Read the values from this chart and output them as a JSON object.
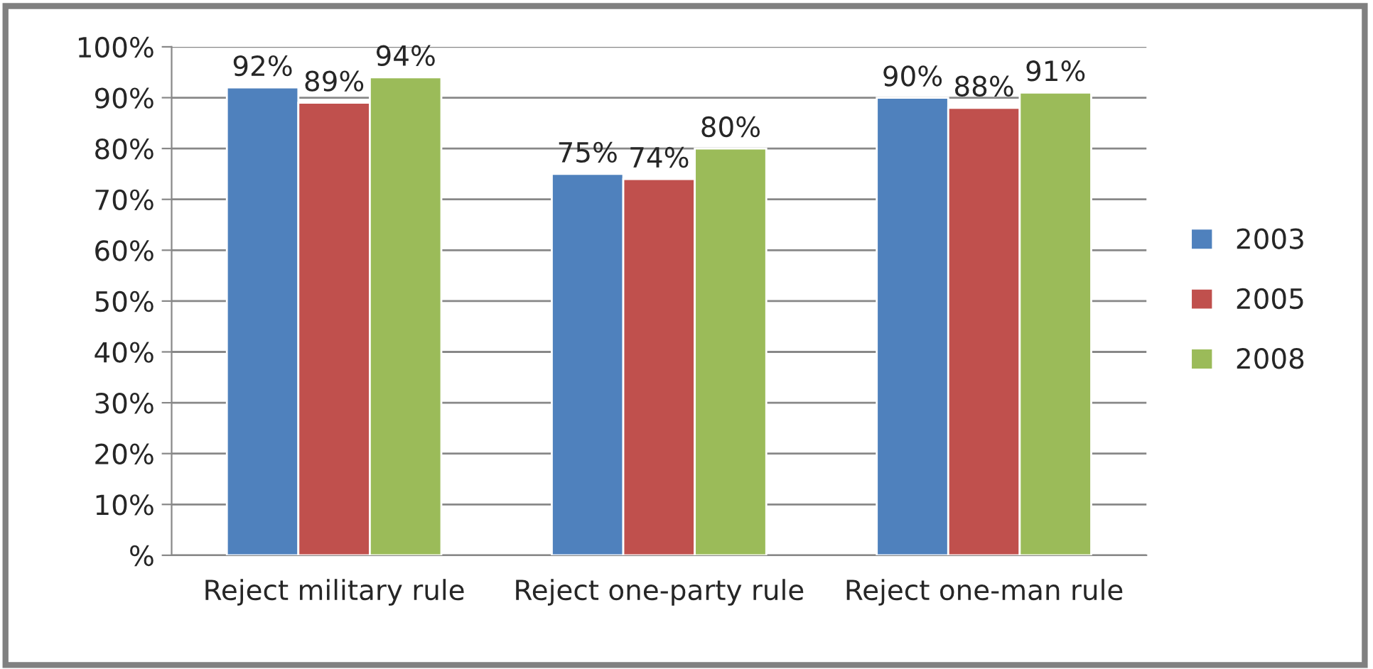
{
  "chart_data": {
    "type": "bar",
    "categories": [
      "Reject military rule",
      "Reject one-party rule",
      "Reject one-man rule"
    ],
    "series": [
      {
        "name": "2003",
        "color": "#4f81bd",
        "values": [
          92,
          75,
          90
        ],
        "value_labels": [
          "92%",
          "75%",
          "90%"
        ]
      },
      {
        "name": "2005",
        "color": "#c0504d",
        "values": [
          89,
          74,
          88
        ],
        "value_labels": [
          "89%",
          "74%",
          "88%"
        ]
      },
      {
        "name": "2008",
        "color": "#9bbb59",
        "values": [
          94,
          80,
          91
        ],
        "value_labels": [
          "94%",
          "80%",
          "91%"
        ]
      }
    ],
    "ylim": [
      0,
      100
    ],
    "yticks": [
      {
        "value": 0,
        "label": "%"
      },
      {
        "value": 10,
        "label": "10%"
      },
      {
        "value": 20,
        "label": "20%"
      },
      {
        "value": 30,
        "label": "30%"
      },
      {
        "value": 40,
        "label": "40%"
      },
      {
        "value": 50,
        "label": "50%"
      },
      {
        "value": 60,
        "label": "60%"
      },
      {
        "value": 70,
        "label": "70%"
      },
      {
        "value": 80,
        "label": "80%"
      },
      {
        "value": 90,
        "label": "90%"
      },
      {
        "value": 100,
        "label": "100%"
      }
    ],
    "grid": "y",
    "legend": "right"
  }
}
